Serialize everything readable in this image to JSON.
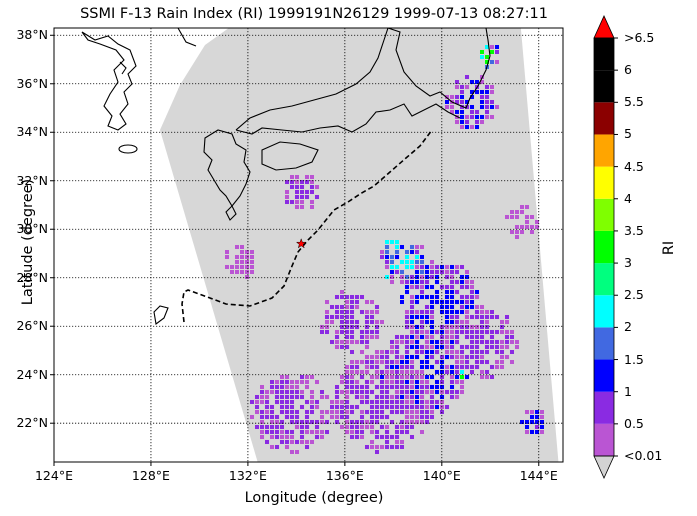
{
  "title": "SSMI F-13 Rain Index (RI) 1999191N26129 1999-07-13 08:27:11",
  "xlabel": "Longitude (degree)",
  "ylabel": "Latitude (degree)",
  "colorbar": {
    "title": "RI",
    "labels": [
      "<0.01",
      "0.5",
      "1",
      "1.5",
      "2",
      "2.5",
      "3",
      "3.5",
      "4",
      "4.5",
      "5",
      "5.5",
      "6",
      ">6.5"
    ],
    "colors": [
      "#ba55d3",
      "#8a2be2",
      "#0000ff",
      "#4169e1",
      "#00ffff",
      "#00ff7f",
      "#00ff00",
      "#7fff00",
      "#ffff00",
      "#ffa500",
      "#8b0000",
      "#000000",
      "#000000"
    ],
    "under_color": "#d3d3d3",
    "over_color": "#ff0000"
  },
  "axes": {
    "xticks": [
      "124°E",
      "128°E",
      "132°E",
      "136°E",
      "140°E",
      "144°E"
    ],
    "yticks": [
      "22°N",
      "24°N",
      "26°N",
      "28°N",
      "30°N",
      "32°N",
      "34°N",
      "36°N",
      "38°N"
    ],
    "lon_range": [
      124,
      145
    ],
    "lat_range": [
      20.4,
      38.3
    ]
  },
  "storm_center": {
    "lon": 134.2,
    "lat": 29.4,
    "marker_color": "#ff0000"
  },
  "colors": {
    "swath_bg": "#d3d3d3",
    "track": "#000000"
  }
}
